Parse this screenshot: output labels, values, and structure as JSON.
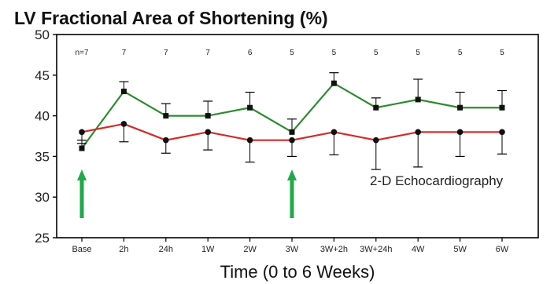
{
  "chart_data": {
    "type": "line",
    "title": "LV Fractional Area of Shortening (%)",
    "xlabel": "Time (0 to 6 Weeks)",
    "ylabel": "",
    "ylim": [
      25,
      50
    ],
    "yticks": [
      25,
      30,
      35,
      40,
      45,
      50
    ],
    "categories": [
      "Base",
      "2h",
      "24h",
      "1W",
      "2W",
      "3W",
      "3W+2h",
      "3W+24h",
      "4W",
      "5W",
      "6W"
    ],
    "n_counts": [
      "n=7",
      "7",
      "7",
      "7",
      "6",
      "5",
      "5",
      "5",
      "5",
      "5",
      "5"
    ],
    "annotation": "2-D Echocardiography",
    "arrows_at": [
      "Base",
      "3W"
    ],
    "grid": false,
    "series": [
      {
        "color": "#2e8b2e",
        "marker": "square",
        "values": [
          36,
          43,
          40,
          40,
          41,
          38,
          44,
          41,
          42,
          41,
          41
        ],
        "err_hi": [
          37,
          44.2,
          41.5,
          41.8,
          42.9,
          39.6,
          45.3,
          42.2,
          44.5,
          42.9,
          43.1
        ],
        "err_lo": [
          null,
          null,
          null,
          null,
          null,
          null,
          null,
          null,
          null,
          null,
          null
        ]
      },
      {
        "color": "#d42a2a",
        "marker": "circle",
        "values": [
          38,
          39,
          37,
          38,
          37,
          37,
          38,
          37,
          38,
          38,
          38
        ],
        "err_hi": [
          null,
          null,
          null,
          null,
          null,
          null,
          null,
          null,
          null,
          null,
          null
        ],
        "err_lo": [
          36.6,
          36.8,
          35.4,
          35.8,
          34.3,
          35,
          35.2,
          33.4,
          33.7,
          35,
          35.3
        ]
      }
    ],
    "colors": {
      "arrow": "#1faa4a",
      "axis": "#000000"
    }
  }
}
